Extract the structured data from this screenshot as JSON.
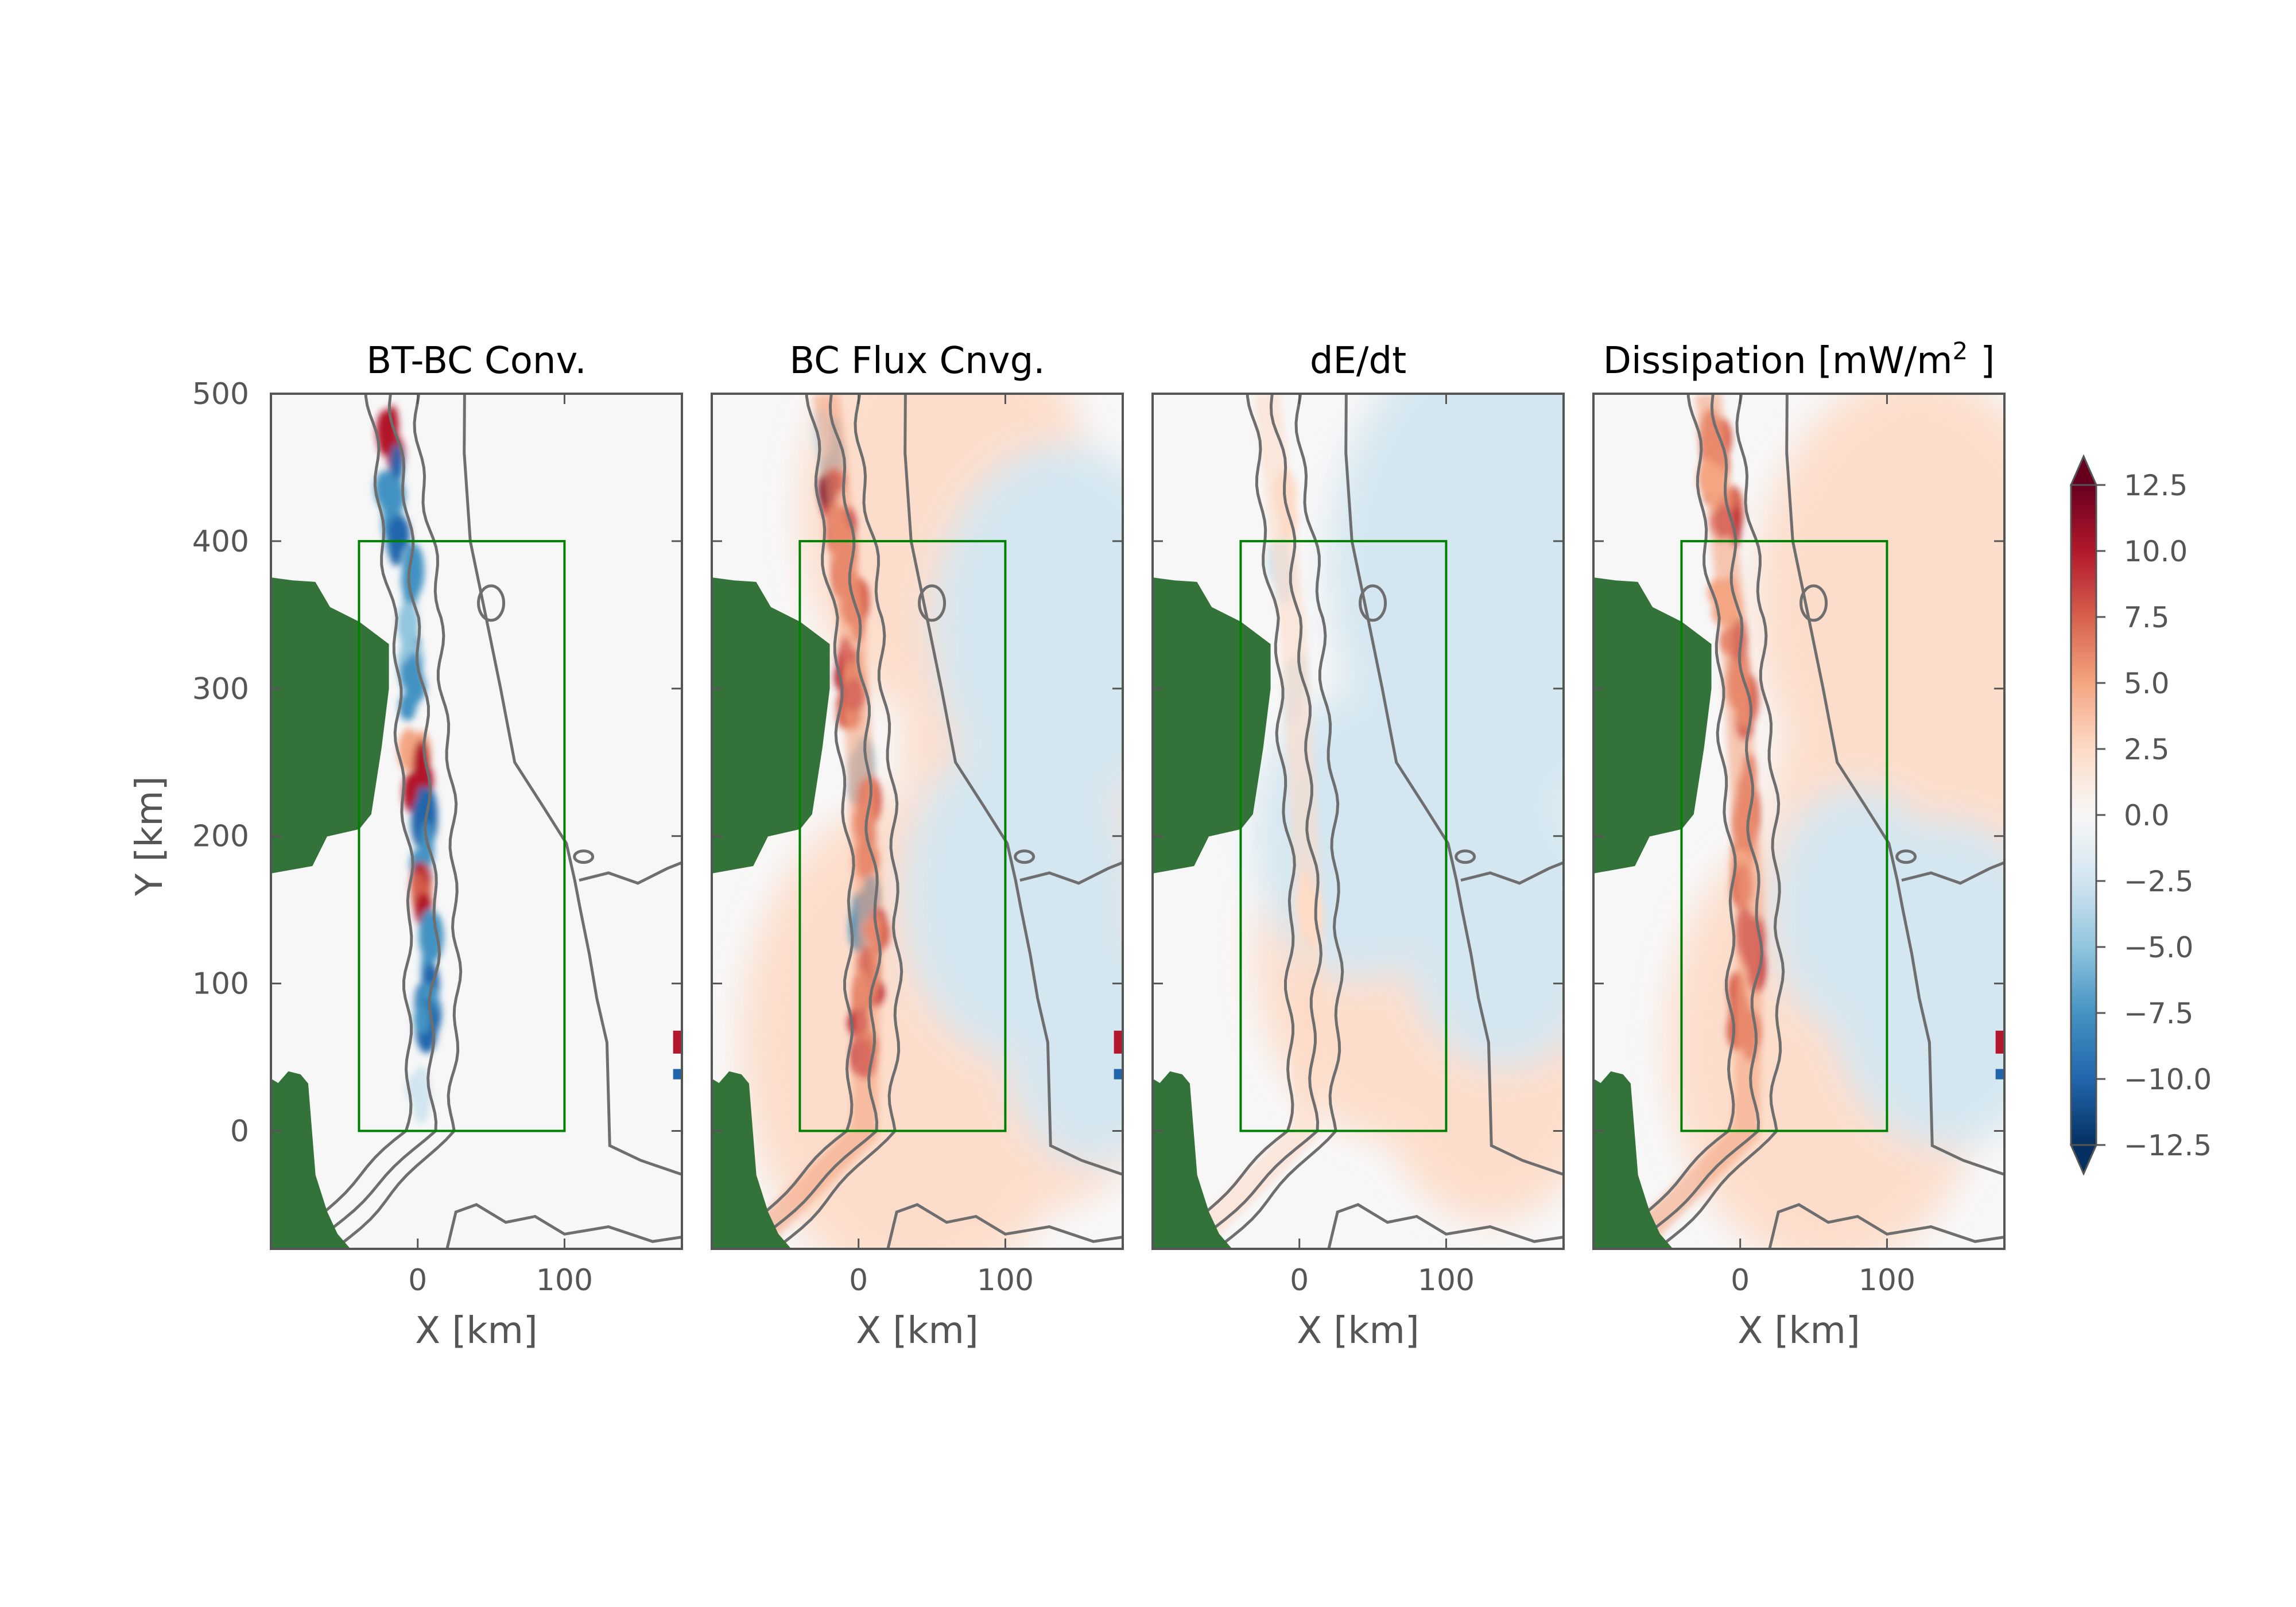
{
  "chart_data": [
    {
      "type": "heatmap",
      "title": "BT-BC Conv.",
      "xlabel": "X [km]",
      "ylabel": "Y [km]",
      "xlim": [
        -100,
        180
      ],
      "ylim": [
        -80,
        500
      ],
      "xticks": [
        0,
        100
      ],
      "yticks": [
        0,
        100,
        200,
        300,
        400,
        500
      ],
      "pattern": "strong"
    },
    {
      "type": "heatmap",
      "title": "BC Flux Cnvg.",
      "xlabel": "X [km]",
      "ylabel": "",
      "xlim": [
        -100,
        180
      ],
      "ylim": [
        -80,
        500
      ],
      "xticks": [
        0,
        100
      ],
      "yticks": [],
      "pattern": "positive"
    },
    {
      "type": "heatmap",
      "title": "dE/dt",
      "xlabel": "X [km]",
      "ylabel": "",
      "xlim": [
        -100,
        180
      ],
      "ylim": [
        -80,
        500
      ],
      "xticks": [
        0,
        100
      ],
      "yticks": [],
      "pattern": "weak"
    },
    {
      "type": "heatmap",
      "title": "Dissipation [mW/m",
      "title_sup": "2",
      "title_end": "]",
      "xlabel": "X [km]",
      "ylabel": "",
      "xlim": [
        -100,
        180
      ],
      "ylim": [
        -80,
        500
      ],
      "xticks": [
        0,
        100
      ],
      "yticks": [],
      "pattern": "dissipation"
    }
  ],
  "colorbar": {
    "range": [
      -12.5,
      12.5
    ],
    "ticks": [
      "12.5",
      "10.0",
      "7.5",
      "5.0",
      "2.5",
      "0.0",
      "−2.5",
      "−5.0",
      "−7.5",
      "−10.0",
      "−12.5"
    ],
    "extend": "both",
    "colormap": "RdBu_r"
  },
  "analysis_box": {
    "x": [
      -40,
      100
    ],
    "y": [
      0,
      400
    ],
    "color": "#008000"
  },
  "colors": {
    "land": "#33733a",
    "contour": "#6e6e6e",
    "axes": "#555555",
    "red": "#67001f",
    "blue": "#053061"
  }
}
